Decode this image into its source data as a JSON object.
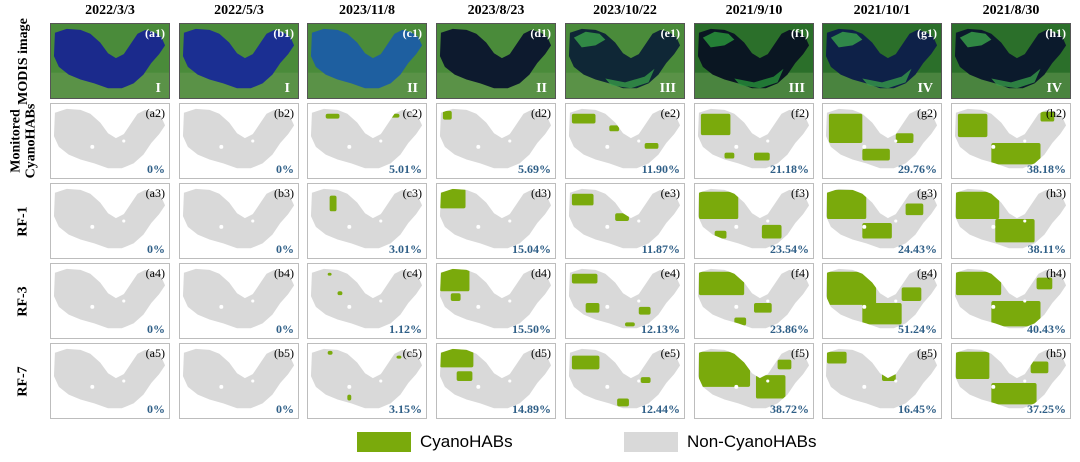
{
  "columns": [
    {
      "date": "2022/3/3",
      "sat": "(a1)",
      "sat_class": "I",
      "panels": [
        {
          "label": "(a2)",
          "pct": "0%"
        },
        {
          "label": "(a3)",
          "pct": "0%"
        },
        {
          "label": "(a4)",
          "pct": "0%"
        },
        {
          "label": "(a5)",
          "pct": "0%"
        }
      ]
    },
    {
      "date": "2022/5/3",
      "sat": "(b1)",
      "sat_class": "I",
      "panels": [
        {
          "label": "(b2)",
          "pct": "0%"
        },
        {
          "label": "(b3)",
          "pct": "0%"
        },
        {
          "label": "(b4)",
          "pct": "0%"
        },
        {
          "label": "(b5)",
          "pct": "0%"
        }
      ]
    },
    {
      "date": "2023/11/8",
      "sat": "(c1)",
      "sat_class": "II",
      "panels": [
        {
          "label": "(c2)",
          "pct": "5.01%"
        },
        {
          "label": "(c3)",
          "pct": "3.01%"
        },
        {
          "label": "(c4)",
          "pct": "1.12%"
        },
        {
          "label": "(c5)",
          "pct": "3.15%"
        }
      ]
    },
    {
      "date": "2023/8/23",
      "sat": "(d1)",
      "sat_class": "II",
      "panels": [
        {
          "label": "(d2)",
          "pct": "5.69%"
        },
        {
          "label": "(d3)",
          "pct": "15.04%"
        },
        {
          "label": "(d4)",
          "pct": "15.50%"
        },
        {
          "label": "(d5)",
          "pct": "14.89%"
        }
      ]
    },
    {
      "date": "2023/10/22",
      "sat": "(e1)",
      "sat_class": "III",
      "panels": [
        {
          "label": "(e2)",
          "pct": "11.90%"
        },
        {
          "label": "(e3)",
          "pct": "11.87%"
        },
        {
          "label": "(e4)",
          "pct": "12.13%"
        },
        {
          "label": "(e5)",
          "pct": "12.44%"
        }
      ]
    },
    {
      "date": "2021/9/10",
      "sat": "(f1)",
      "sat_class": "III",
      "panels": [
        {
          "label": "(f2)",
          "pct": "21.18%"
        },
        {
          "label": "(f3)",
          "pct": "23.54%"
        },
        {
          "label": "(f4)",
          "pct": "23.86%"
        },
        {
          "label": "(f5)",
          "pct": "38.72%"
        }
      ]
    },
    {
      "date": "2021/10/1",
      "sat": "(g1)",
      "sat_class": "IV",
      "panels": [
        {
          "label": "(g2)",
          "pct": "29.76%"
        },
        {
          "label": "(g3)",
          "pct": "24.43%"
        },
        {
          "label": "(g4)",
          "pct": "51.24%"
        },
        {
          "label": "(g5)",
          "pct": "16.45%"
        }
      ]
    },
    {
      "date": "2021/8/30",
      "sat": "(h1)",
      "sat_class": "IV",
      "panels": [
        {
          "label": "(h2)",
          "pct": "38.18%"
        },
        {
          "label": "(h3)",
          "pct": "38.11%"
        },
        {
          "label": "(h4)",
          "pct": "40.43%"
        },
        {
          "label": "(h5)",
          "pct": "37.25%"
        }
      ]
    }
  ],
  "row_labels": [
    "MODIS image",
    "Monitored CyanoHABs",
    "RF-1",
    "RF-3",
    "RF-7"
  ],
  "legend": {
    "cyano_label": "CyanoHABs",
    "non_cyano_label": "Non-CyanoHABs",
    "cyano_color": "#7aaa0c",
    "non_cyano_color": "#d9d9d9"
  },
  "colors": {
    "lake_gray": "#d9d9d9",
    "bloom_green": "#7aaa0c",
    "percent_text": "#2f5f87",
    "land_green": "#3f8a32",
    "water_blue": "#1a2e86",
    "dark_water": "#0b1824"
  }
}
